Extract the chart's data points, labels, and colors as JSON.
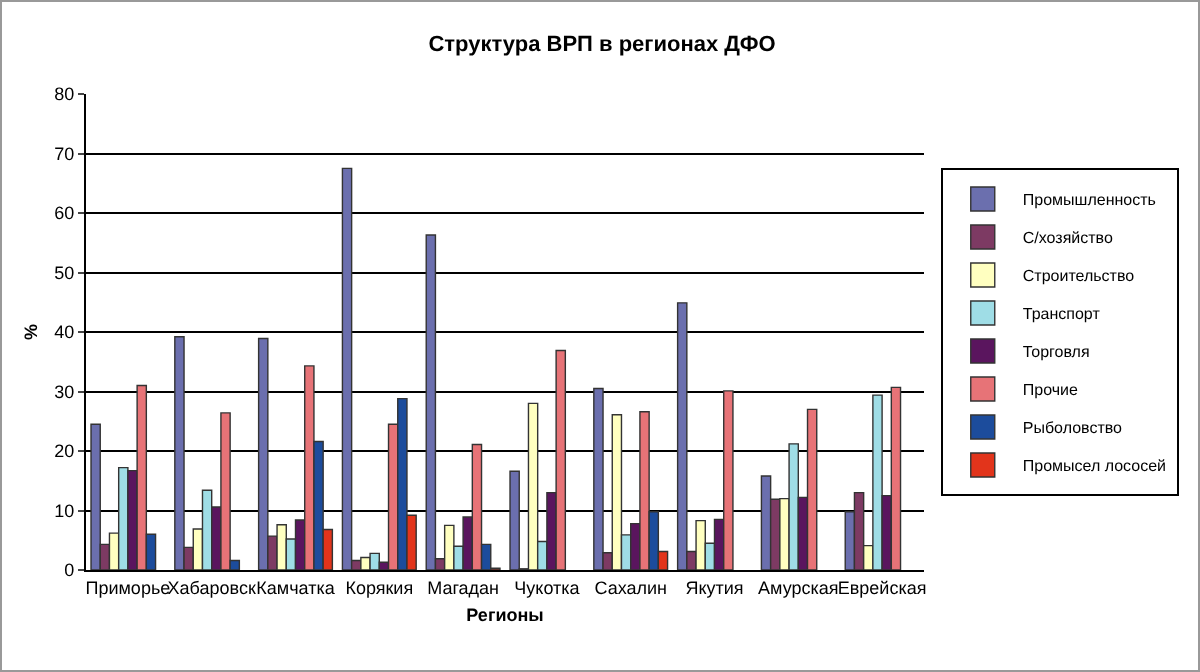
{
  "chart_data": {
    "type": "bar",
    "title": "Структура ВРП в регионах ДФО",
    "xlabel": "Регионы",
    "ylabel": "%",
    "categories": [
      "Приморье",
      "Хабаровск",
      "Камчатка",
      "Корякия",
      "Магадан",
      "Чукотка",
      "Сахалин",
      "Якутия",
      "Амурская",
      "Еврейская"
    ],
    "series": [
      {
        "name": "Промышленность",
        "color": "#6b6fae",
        "values": [
          24.5,
          39.2,
          38.9,
          67.5,
          56.3,
          16.6,
          30.5,
          44.9,
          15.8,
          9.8
        ]
      },
      {
        "name": "С/хозяйство",
        "color": "#7d3a63",
        "values": [
          4.3,
          3.8,
          5.7,
          1.6,
          1.9,
          0.2,
          2.9,
          3.1,
          11.9,
          13.0
        ]
      },
      {
        "name": "Строительство",
        "color": "#ffffc0",
        "values": [
          6.2,
          6.9,
          7.6,
          2.1,
          7.5,
          28.0,
          26.1,
          8.3,
          12.0,
          4.1
        ]
      },
      {
        "name": "Транспорт",
        "color": "#9fdde6",
        "values": [
          17.2,
          13.4,
          5.2,
          2.8,
          4.0,
          4.8,
          5.9,
          4.5,
          21.2,
          29.4
        ]
      },
      {
        "name": "Торговля",
        "color": "#5a155e",
        "values": [
          16.7,
          10.6,
          8.4,
          1.3,
          8.9,
          13.0,
          7.8,
          8.5,
          12.2,
          12.5
        ]
      },
      {
        "name": "Прочие",
        "color": "#e77377",
        "values": [
          31.0,
          26.4,
          34.3,
          24.5,
          21.1,
          36.9,
          26.6,
          30.1,
          27.0,
          30.7
        ]
      },
      {
        "name": "Рыболовство",
        "color": "#1c4c9c",
        "values": [
          6.0,
          1.6,
          21.6,
          28.8,
          4.3,
          null,
          9.8,
          null,
          null,
          null
        ]
      },
      {
        "name": "Промысел лососей",
        "color": "#e2341b",
        "values": [
          null,
          null,
          6.8,
          9.2,
          0.3,
          null,
          3.1,
          null,
          null,
          null
        ]
      }
    ],
    "ylim": [
      0,
      80
    ],
    "yticks": [
      0,
      10,
      20,
      30,
      40,
      50,
      60,
      70,
      80
    ],
    "grid": "y",
    "legend": "right"
  }
}
